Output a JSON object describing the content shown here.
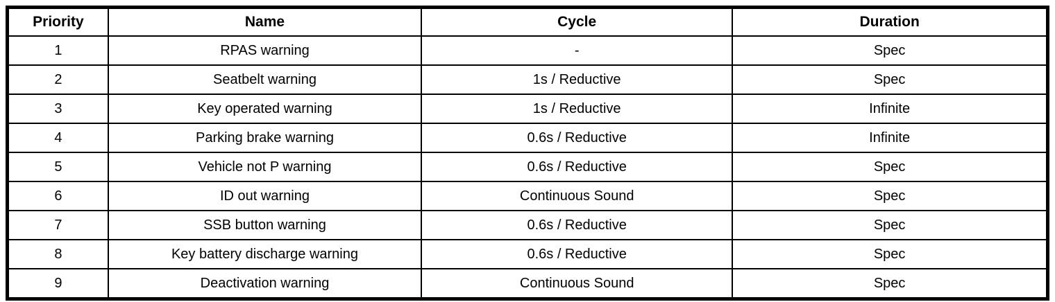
{
  "table": {
    "headers": {
      "priority": "Priority",
      "name": "Name",
      "cycle": "Cycle",
      "duration": "Duration"
    },
    "rows": [
      {
        "priority": "1",
        "name": "RPAS warning",
        "cycle": "-",
        "duration": "Spec"
      },
      {
        "priority": "2",
        "name": "Seatbelt warning",
        "cycle": "1s / Reductive",
        "duration": "Spec"
      },
      {
        "priority": "3",
        "name": "Key operated warning",
        "cycle": "1s / Reductive",
        "duration": "Infinite"
      },
      {
        "priority": "4",
        "name": "Parking brake warning",
        "cycle": "0.6s / Reductive",
        "duration": "Infinite"
      },
      {
        "priority": "5",
        "name": "Vehicle not P warning",
        "cycle": "0.6s / Reductive",
        "duration": "Spec"
      },
      {
        "priority": "6",
        "name": "ID out warning",
        "cycle": "Continuous Sound",
        "duration": "Spec"
      },
      {
        "priority": "7",
        "name": "SSB button warning",
        "cycle": "0.6s / Reductive",
        "duration": "Spec"
      },
      {
        "priority": "8",
        "name": "Key battery discharge warning",
        "cycle": "0.6s / Reductive",
        "duration": "Spec"
      },
      {
        "priority": "9",
        "name": "Deactivation warning",
        "cycle": "Continuous Sound",
        "duration": "Spec"
      }
    ],
    "colors": {
      "border": "#000000",
      "background": "#ffffff",
      "text": "#000000"
    }
  }
}
